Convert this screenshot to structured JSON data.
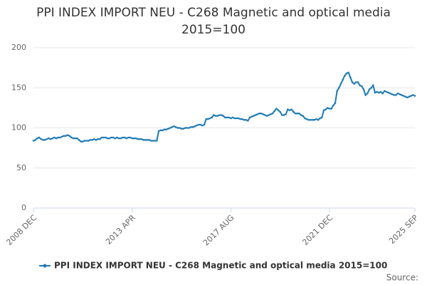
{
  "chart_data": {
    "type": "line",
    "title": "PPI INDEX IMPORT NEU - C268 Magnetic and optical media 2015=100",
    "source": "Source:",
    "categories": [
      "2008 DEC",
      null,
      null,
      null,
      null,
      null,
      null,
      null,
      null,
      null,
      null,
      null,
      null,
      null,
      null,
      null,
      null,
      null,
      null,
      null,
      null,
      null,
      null,
      null,
      null,
      null,
      null,
      null,
      null,
      null,
      null,
      null,
      null,
      null,
      null,
      null,
      null,
      null,
      null,
      null,
      null,
      null,
      null,
      null,
      null,
      null,
      null,
      null,
      null,
      null,
      null,
      null,
      "2013 APR",
      null,
      null,
      null,
      null,
      null,
      null,
      null,
      null,
      null,
      null,
      null,
      null,
      null,
      null,
      null,
      null,
      null,
      null,
      null,
      null,
      null,
      null,
      null,
      null,
      null,
      null,
      null,
      null,
      null,
      null,
      null,
      null,
      null,
      null,
      null,
      null,
      null,
      null,
      null,
      null,
      null,
      null,
      null,
      null,
      null,
      null,
      null,
      null,
      null,
      null,
      null,
      "2017 AUG",
      null,
      null,
      null,
      null,
      null,
      null,
      null,
      null,
      null,
      null,
      null,
      null,
      null,
      null,
      null,
      null,
      null,
      null,
      null,
      null,
      null,
      null,
      null,
      null,
      null,
      null,
      null,
      null,
      null,
      null,
      null,
      null,
      null,
      null,
      null,
      null,
      null,
      null,
      null,
      null,
      null,
      null,
      null,
      null,
      null,
      null,
      null,
      null,
      null,
      null,
      null,
      "2021 DEC",
      null,
      null,
      null,
      null,
      null,
      null,
      null,
      null,
      null,
      null,
      null,
      null,
      null,
      null,
      null,
      null,
      null,
      null,
      null,
      null,
      null,
      null,
      null,
      null,
      null,
      null,
      null,
      null,
      null,
      null,
      null,
      null,
      null,
      null,
      null,
      null,
      null,
      null,
      null,
      null,
      null,
      null,
      null,
      null,
      "2025 SEP"
    ],
    "series": [
      {
        "name": "PPI INDEX IMPORT NEU - C268 Magnetic and optical media 2015=100",
        "color": "#1f7bb6",
        "values": [
          84,
          85,
          87,
          88,
          86,
          85,
          85,
          86,
          87,
          86,
          87,
          88,
          87,
          88,
          88,
          89,
          90,
          90,
          91,
          90,
          88,
          87,
          87,
          87,
          85,
          83,
          83,
          84,
          84,
          84,
          85,
          85,
          86,
          85,
          86,
          86,
          88,
          88,
          88,
          87,
          87,
          88,
          88,
          87,
          88,
          87,
          87,
          88,
          88,
          87,
          88,
          88,
          87,
          87,
          87,
          86,
          86,
          86,
          85,
          85,
          85,
          85,
          84,
          84,
          84,
          84,
          96,
          97,
          97,
          98,
          98,
          99,
          100,
          101,
          102,
          101,
          100,
          100,
          99,
          99,
          100,
          100,
          100,
          101,
          101,
          102,
          103,
          104,
          104,
          103,
          104,
          111,
          111,
          112,
          113,
          116,
          115,
          115,
          116,
          116,
          115,
          113,
          113,
          113,
          112,
          113,
          112,
          112,
          112,
          111,
          111,
          110,
          110,
          109,
          113,
          114,
          115,
          116,
          117,
          118,
          118,
          117,
          116,
          115,
          116,
          117,
          118,
          121,
          124,
          122,
          120,
          116,
          116,
          117,
          123,
          122,
          123,
          120,
          118,
          118,
          118,
          116,
          115,
          112,
          111,
          110,
          110,
          110,
          110,
          111,
          110,
          112,
          113,
          122,
          123,
          125,
          124,
          124,
          128,
          131,
          146,
          150,
          155,
          160,
          165,
          168,
          169,
          163,
          157,
          155,
          157,
          157,
          153,
          152,
          148,
          141,
          143,
          148,
          150,
          153,
          144,
          145,
          144,
          145,
          143,
          146,
          145,
          144,
          143,
          142,
          141,
          141,
          143,
          142,
          141,
          140,
          139,
          138,
          139,
          140,
          141,
          140
        ]
      }
    ],
    "ylim": [
      0,
      200
    ],
    "yticks": [
      0,
      50,
      100,
      150,
      200
    ],
    "grid": true
  }
}
